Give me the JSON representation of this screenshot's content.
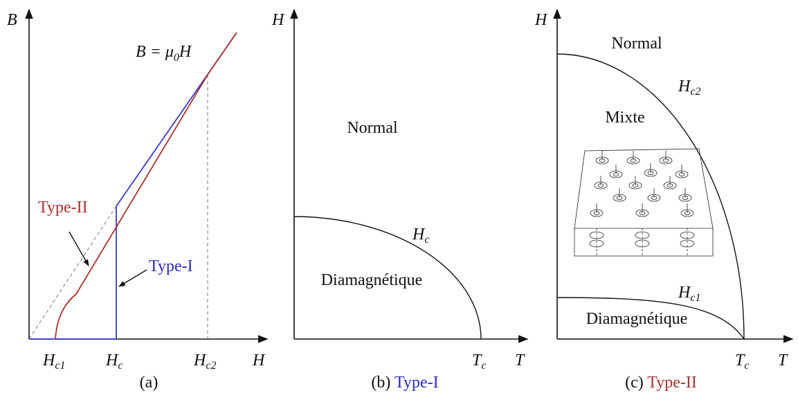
{
  "panel_a": {
    "y_axis_label": "B",
    "x_axis_label": "H",
    "equation": {
      "text": "B = μ",
      "sub": "0",
      "tail": "H"
    },
    "ticks": [
      {
        "main": "H",
        "sub": "c1"
      },
      {
        "main": "H",
        "sub": "c"
      },
      {
        "main": "H",
        "sub": "c2"
      }
    ],
    "curve_labels": {
      "type_ii": "Type-II",
      "type_i": "Type-I"
    },
    "caption": "(a)"
  },
  "panel_b": {
    "y_axis_label": "H",
    "x_axis_label": "T",
    "tick": {
      "main": "T",
      "sub": "c"
    },
    "curve_label": {
      "main": "H",
      "sub": "c"
    },
    "regions": [
      "Normal",
      "Diamagnétique"
    ],
    "caption": "(b)",
    "caption_type": "Type-I"
  },
  "panel_c": {
    "y_axis_label": "H",
    "x_axis_label": "T",
    "tick": {
      "main": "T",
      "sub": "c"
    },
    "curve_labels": [
      {
        "main": "H",
        "sub": "c2"
      },
      {
        "main": "H",
        "sub": "c1"
      }
    ],
    "regions": [
      "Normal",
      "Mixte",
      "Diamagnétique"
    ],
    "caption": "(c)",
    "caption_type": "Type-II"
  }
}
